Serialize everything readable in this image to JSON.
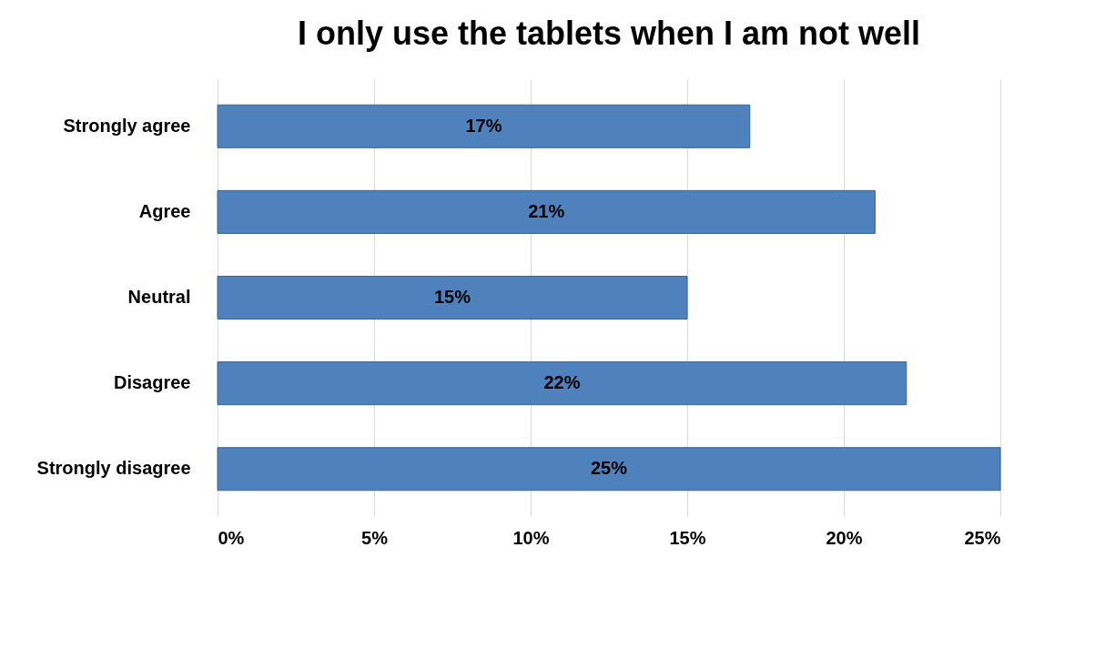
{
  "chart_data": {
    "type": "bar",
    "orientation": "horizontal",
    "title": "I only use the tablets when I am not well",
    "categories": [
      "Strongly agree",
      "Agree",
      "Neutral",
      "Disagree",
      "Strongly disagree"
    ],
    "values": [
      17,
      21,
      15,
      22,
      25
    ],
    "value_labels": [
      "17%",
      "21%",
      "15%",
      "22%",
      "25%"
    ],
    "color": "#4f81bd",
    "xlim": [
      0,
      25
    ],
    "xticks": [
      {
        "value": 0,
        "label": "0%"
      },
      {
        "value": 5,
        "label": "5%"
      },
      {
        "value": 10,
        "label": "10%"
      },
      {
        "value": 15,
        "label": "15%"
      },
      {
        "value": 20,
        "label": "20%"
      },
      {
        "value": 25,
        "label": "25%"
      }
    ],
    "grid": "x"
  }
}
